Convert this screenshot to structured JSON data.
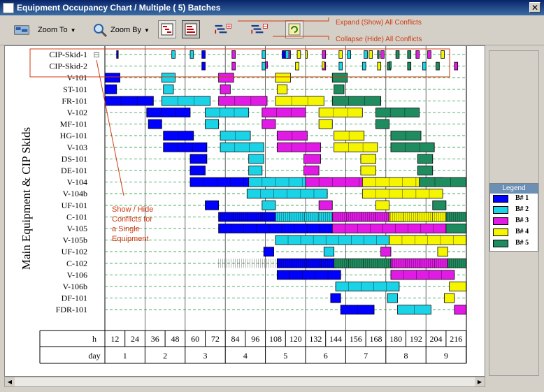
{
  "window": {
    "title": "Equipment Occupancy Chart / Multiple ( 5) Batches",
    "close": "✕"
  },
  "toolbar": {
    "zoom_to_label": "Zoom To",
    "zoom_by_label": "Zoom By",
    "expand_all_label": "Expand (Show) All Conflicts",
    "collapse_all_label": "Collapse (Hide) All Conflicts"
  },
  "chart": {
    "y_title": "Main Equipment & CIP Skids",
    "equipment": [
      "CIP-Skid-1",
      "CIP-Skid-2",
      "V-101",
      "ST-101",
      "FR-101",
      "V-102",
      "MF-101",
      "HG-101",
      "V-103",
      "DS-101",
      "DE-101",
      "V-104",
      "V-104b",
      "UF-101",
      "C-101",
      "V-105",
      "V-105b",
      "UF-102",
      "C-102",
      "V-106",
      "V-106b",
      "DF-101",
      "FDR-101"
    ],
    "row_header_h": "h",
    "row_header_day": "day",
    "hours": [
      "12",
      "24",
      "36",
      "48",
      "60",
      "72",
      "84",
      "96",
      "108",
      "120",
      "132",
      "144",
      "156",
      "168",
      "180",
      "192",
      "204",
      "216"
    ],
    "days": [
      "1",
      "2",
      "3",
      "4",
      "5",
      "6",
      "7",
      "8",
      "9"
    ],
    "toggle_symbol": "⊟",
    "annotation": "Show / Hide Conflicts for a Single Equipment"
  },
  "legend": {
    "title": "Legend",
    "items": [
      {
        "label": "B# 1",
        "color": "#0000ff"
      },
      {
        "label": "B# 2",
        "color": "#1ad3e6"
      },
      {
        "label": "B# 3",
        "color": "#e21ae6"
      },
      {
        "label": "B# 4",
        "color": "#f5f500"
      },
      {
        "label": "B# 5",
        "color": "#1e8c5e"
      }
    ]
  },
  "batch_colors": [
    "#0000ff",
    "#1ad3e6",
    "#e21ae6",
    "#f5f500",
    "#1e8c5e"
  ],
  "scrollbar": {
    "left_arrow": "◀",
    "right_arrow": "▶"
  }
}
